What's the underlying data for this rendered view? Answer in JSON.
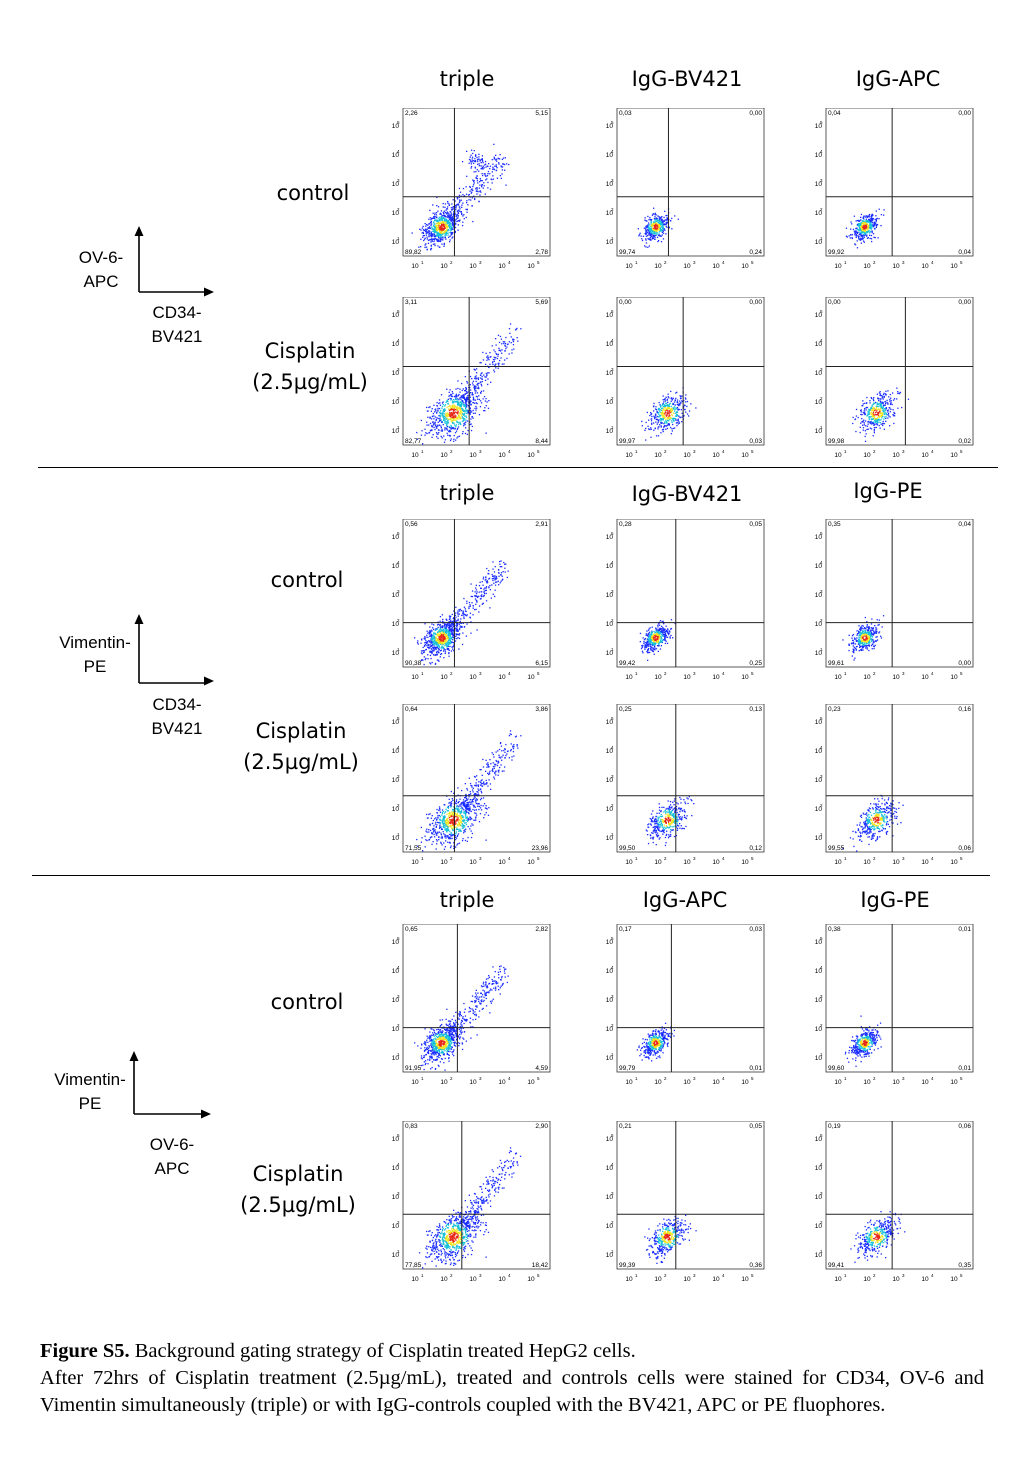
{
  "blocks": [
    {
      "columns": [
        "triple",
        "IgG-BV421",
        "IgG-APC"
      ],
      "rows": [
        {
          "label_line1": "control",
          "label_line2": "",
          "plots": [
            {
              "ul": "2,26",
              "ur": "5,15",
              "ll": "89,82",
              "lr": "2,78"
            },
            {
              "ul": "0,03",
              "ur": "0,00",
              "ll": "99,74",
              "lr": "0,24"
            },
            {
              "ul": "0,04",
              "ur": "0,00",
              "ll": "99,92",
              "lr": "0,04"
            }
          ]
        },
        {
          "label_line1": "Cisplatin",
          "label_line2": "(2.5µg/mL)",
          "plots": [
            {
              "ul": "3,11",
              "ur": "5,69",
              "ll": "82,77",
              "lr": "8,44"
            },
            {
              "ul": "0,00",
              "ur": "0,00",
              "ll": "99,97",
              "lr": "0,03"
            },
            {
              "ul": "0,00",
              "ur": "0,00",
              "ll": "99,98",
              "lr": "0,02"
            }
          ]
        }
      ],
      "y_axis_label_line1": "OV-6-",
      "y_axis_label_line2": "APC",
      "x_axis_label_line1": "CD34-",
      "x_axis_label_line2": "BV421"
    },
    {
      "columns": [
        "triple",
        "IgG-BV421",
        "IgG-PE"
      ],
      "rows": [
        {
          "label_line1": "control",
          "label_line2": "",
          "plots": [
            {
              "ul": "0,56",
              "ur": "2,91",
              "ll": "90,38",
              "lr": "6,15"
            },
            {
              "ul": "0,28",
              "ur": "0,05",
              "ll": "99,42",
              "lr": "0,25"
            },
            {
              "ul": "0,35",
              "ur": "0,04",
              "ll": "99,61",
              "lr": "0,00"
            }
          ]
        },
        {
          "label_line1": "Cisplatin",
          "label_line2": "(2.5µg/mL)",
          "plots": [
            {
              "ul": "0,64",
              "ur": "3,86",
              "ll": "71,55",
              "lr": "23,96"
            },
            {
              "ul": "0,25",
              "ur": "0,13",
              "ll": "99,50",
              "lr": "0,12"
            },
            {
              "ul": "0,23",
              "ur": "0,16",
              "ll": "99,55",
              "lr": "0,06"
            }
          ]
        }
      ],
      "y_axis_label_line1": "Vimentin-",
      "y_axis_label_line2": "PE",
      "x_axis_label_line1": "CD34-",
      "x_axis_label_line2": "BV421"
    },
    {
      "columns": [
        "triple",
        "IgG-APC",
        "IgG-PE"
      ],
      "rows": [
        {
          "label_line1": "control",
          "label_line2": "",
          "plots": [
            {
              "ul": "0,65",
              "ur": "2,82",
              "ll": "91,95",
              "lr": "4,59"
            },
            {
              "ul": "0,17",
              "ur": "0,03",
              "ll": "99,79",
              "lr": "0,01"
            },
            {
              "ul": "0,38",
              "ur": "0,01",
              "ll": "99,60",
              "lr": "0,01"
            }
          ]
        },
        {
          "label_line1": "Cisplatin",
          "label_line2": "(2.5µg/mL)",
          "plots": [
            {
              "ul": "0,83",
              "ur": "2,90",
              "ll": "77,85",
              "lr": "18,42"
            },
            {
              "ul": "0,21",
              "ur": "0,05",
              "ll": "99,39",
              "lr": "0,36"
            },
            {
              "ul": "0,19",
              "ur": "0,06",
              "ll": "99,41",
              "lr": "0,35"
            }
          ]
        }
      ],
      "y_axis_label_line1": "Vimentin-",
      "y_axis_label_line2": "PE",
      "x_axis_label_line1": "OV-6-",
      "x_axis_label_line2": "APC"
    }
  ],
  "axis_ticks": {
    "x": [
      "10",
      "10",
      "10",
      "10",
      "10"
    ],
    "x_exp": [
      "1",
      "2",
      "3",
      "4",
      "5"
    ],
    "y": [
      "10",
      "10",
      "10",
      "10",
      "10"
    ],
    "y_exp": [
      "5",
      "4",
      "3",
      "2",
      "1"
    ]
  },
  "caption": {
    "title_bold": "Figure S5.",
    "title_rest": " Background gating strategy of Cisplatin treated HepG2 cells.",
    "body": "After 72hrs of Cisplatin treatment (2.5µg/mL), treated and controls cells were stained for CD34, OV-6 and Vimentin simultaneously (triple) or with IgG-controls coupled with the BV421, APC or PE fluophores."
  },
  "colors": {
    "density_low": "#1a2cff",
    "density_mid": "#16c0d8",
    "density_high": "#f2e41c",
    "density_peak": "#e8281a",
    "gate_line": "#222222"
  }
}
